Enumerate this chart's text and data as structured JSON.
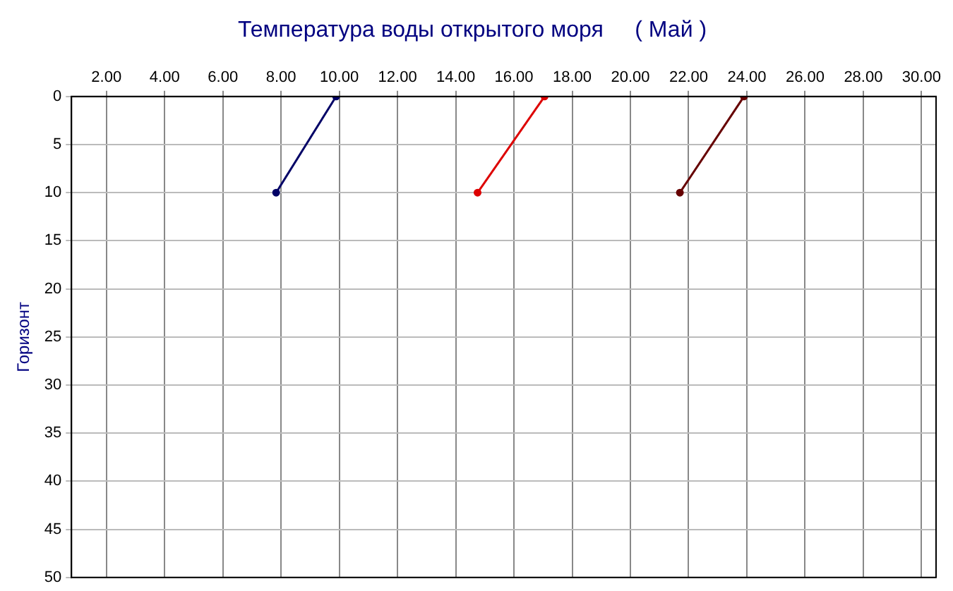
{
  "chart_data": {
    "type": "line",
    "title": "Температура воды открытого моря     ( Май )",
    "ylabel": "Горизонт",
    "series": [
      {
        "color": "#000066",
        "x": [
          7.83,
          9.89
        ],
        "values": [
          10,
          0
        ]
      },
      {
        "color": "#dd0000",
        "x": [
          14.75,
          17.05
        ],
        "values": [
          10,
          0
        ]
      },
      {
        "color": "#660000",
        "x": [
          21.7,
          23.9
        ],
        "values": [
          10,
          0
        ]
      }
    ],
    "xlim": [
      0.8,
      30.5
    ],
    "xticks": [
      {
        "value": 2,
        "label": "2.00"
      },
      {
        "value": 4,
        "label": "4.00"
      },
      {
        "value": 6,
        "label": "6.00"
      },
      {
        "value": 8,
        "label": "8.00"
      },
      {
        "value": 10,
        "label": "10.00"
      },
      {
        "value": 12,
        "label": "12.00"
      },
      {
        "value": 14,
        "label": "14.00"
      },
      {
        "value": 16,
        "label": "16.00"
      },
      {
        "value": 18,
        "label": "18.00"
      },
      {
        "value": 20,
        "label": "20.00"
      },
      {
        "value": 22,
        "label": "22.00"
      },
      {
        "value": 24,
        "label": "24.00"
      },
      {
        "value": 26,
        "label": "26.00"
      },
      {
        "value": 28,
        "label": "28.00"
      },
      {
        "value": 30,
        "label": "30.00"
      }
    ],
    "ylim": [
      50,
      0
    ],
    "yticks": [
      0,
      5,
      10,
      15,
      20,
      25,
      30,
      35,
      40,
      45,
      50
    ],
    "grid": true,
    "legend": false,
    "marker": "circle",
    "line_style": "solid"
  }
}
